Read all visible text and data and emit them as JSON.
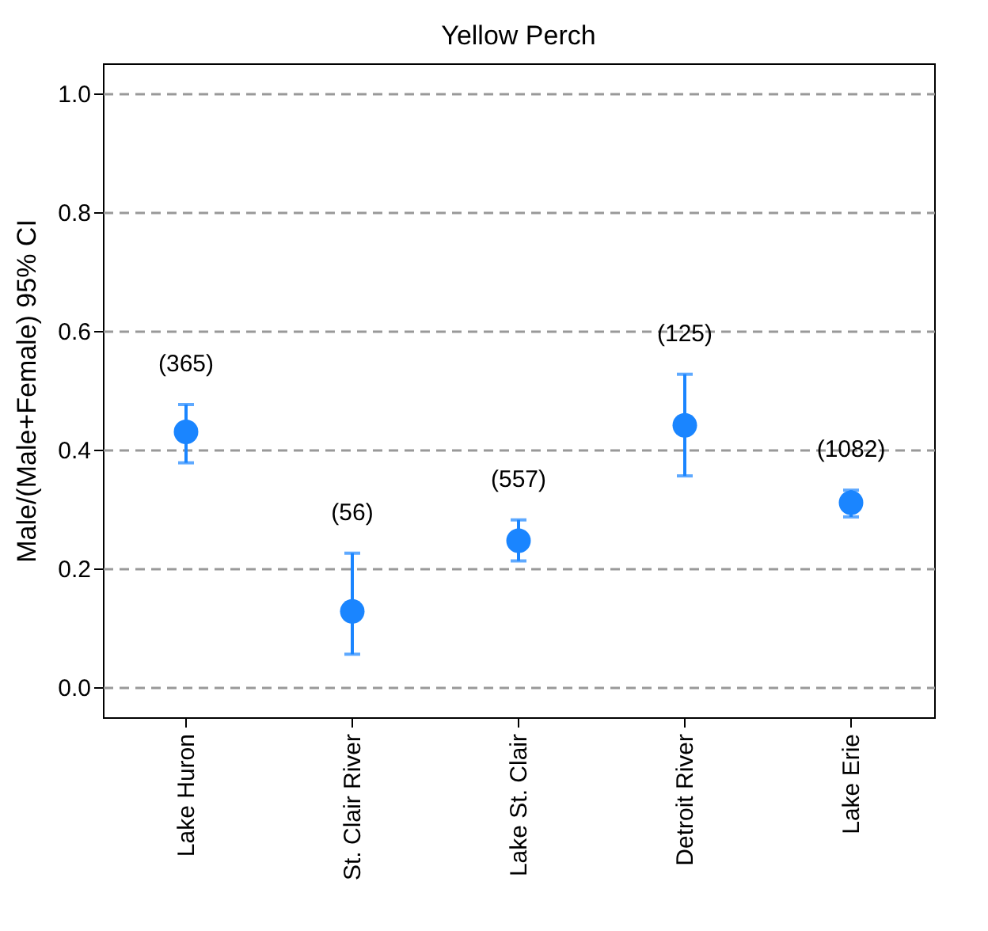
{
  "chart_data": {
    "type": "scatter",
    "title": "Yellow Perch",
    "ylabel": "Male/(Male+Female) 95% CI",
    "categories": [
      "Lake Huron",
      "St. Clair River",
      "Lake St. Clair",
      "Detroit River",
      "Lake Erie"
    ],
    "series": [
      {
        "color": "#1a85ff",
        "values": [
          0.43,
          0.128,
          0.247,
          0.441,
          0.311
        ],
        "errors": [
          [
            0.378,
            0.476
          ],
          [
            0.056,
            0.226
          ],
          [
            0.213,
            0.282
          ],
          [
            0.356,
            0.527
          ],
          [
            0.287,
            0.332
          ]
        ]
      }
    ],
    "annotations": [
      {
        "text": "(365)",
        "x": "Lake Huron",
        "y": 0.476
      },
      {
        "text": "(56)",
        "x": "St. Clair River",
        "y": 0.226
      },
      {
        "text": "(557)",
        "x": "Lake St. Clair",
        "y": 0.282
      },
      {
        "text": "(125)",
        "x": "Detroit River",
        "y": 0.527
      },
      {
        "text": "(1082)",
        "x": "Lake Erie",
        "y": 0.332
      }
    ],
    "ylim": [
      -0.05,
      1.05
    ],
    "yticks": [
      {
        "value": 0,
        "label": "0.0"
      },
      {
        "value": 0.2,
        "label": "0.2"
      },
      {
        "value": 0.4,
        "label": "0.4"
      },
      {
        "value": 0.6,
        "label": "0.6"
      },
      {
        "value": 0.8,
        "label": "0.8"
      },
      {
        "value": 1,
        "label": "1.0"
      }
    ],
    "grid": "y",
    "marker": "circle"
  }
}
